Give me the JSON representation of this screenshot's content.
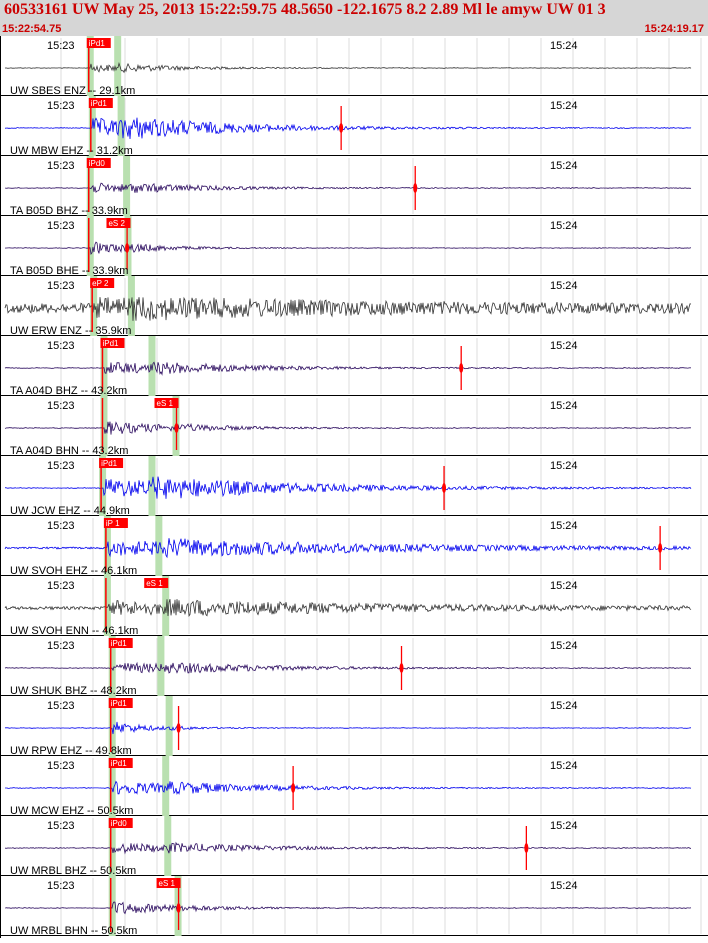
{
  "header": {
    "title": "60533161 UW May 25, 2013 15:22:59.75   48.5650 -122.1675  8.2 2.89 Ml le amyw UW 01   3",
    "start_time": "15:22:54.75",
    "end_time": "15:24:19.17"
  },
  "colors": {
    "header_bg": "#d6d6d6",
    "header_text": "#cc0000",
    "pick": "#ff0000",
    "window": "#b9e0b0",
    "blue": "#0000ee",
    "purple": "#2a0a5e",
    "dark": "#333333",
    "grid": "#dddddd"
  },
  "traces": [
    {
      "label": "UW SBES ENZ -- 29.1km",
      "time_left": "15:23",
      "time_right": "15:24",
      "pick": "iPd1",
      "color": "dark",
      "p": 0.125,
      "s": 0.165,
      "marker": null,
      "amp": 0.22,
      "decay": 0.1,
      "noise": 0.01,
      "clip": 0.18
    },
    {
      "label": "UW MBW EHZ -- 31.2km",
      "time_left": "15:23",
      "time_right": "15:24",
      "pick": "iPd1",
      "color": "blue",
      "p": 0.128,
      "s": 0.17,
      "marker": 0.49,
      "amp": 0.55,
      "decay": 0.16,
      "noise": 0.012,
      "clip": 0.32
    },
    {
      "label": "TA B05D BHZ -- 33.9km",
      "time_left": "15:23",
      "time_right": "15:24",
      "pick": "iPd0",
      "color": "purple",
      "p": 0.125,
      "s": 0.178,
      "marker": 0.598,
      "amp": 0.28,
      "decay": 0.12,
      "noise": 0.012,
      "clip": 0.15
    },
    {
      "label": "TA B05D BHE -- 33.9km",
      "time_left": "15:23",
      "time_right": "15:24",
      "pick": "eS 2",
      "color": "purple",
      "p": 0.125,
      "s": 0.18,
      "marker": 0.178,
      "amp": 0.35,
      "decay": 0.07,
      "noise": 0.01,
      "clip": 0.25
    },
    {
      "label": "UW ERW ENZ -- 35.9km",
      "time_left": "15:23",
      "time_right": "15:24",
      "pick": "eP 2",
      "color": "dark",
      "p": 0.13,
      "s": 0.185,
      "marker": null,
      "amp": 0.35,
      "decay": 0.3,
      "noise": 0.16,
      "clip": 0.3
    },
    {
      "label": "TA A04D BHZ -- 43.2km",
      "time_left": "15:23",
      "time_right": "15:24",
      "pick": "iPd1",
      "color": "purple",
      "p": 0.145,
      "s": 0.215,
      "marker": 0.665,
      "amp": 0.35,
      "decay": 0.15,
      "noise": 0.012,
      "clip": 0.22
    },
    {
      "label": "TA A04D BHN -- 43.2km",
      "time_left": "15:23",
      "time_right": "15:24",
      "pick": "eS 1",
      "color": "purple",
      "p": 0.145,
      "s": 0.25,
      "marker": 0.25,
      "amp": 0.4,
      "decay": 0.1,
      "noise": 0.012,
      "clip": 0.3
    },
    {
      "label": "UW JCW EHZ -- 44.9km",
      "time_left": "15:23",
      "time_right": "15:24",
      "pick": "iPd1",
      "color": "blue",
      "p": 0.143,
      "s": 0.215,
      "marker": 0.64,
      "amp": 0.55,
      "decay": 0.22,
      "noise": 0.012,
      "clip": 0.34
    },
    {
      "label": "UW SVOH EHZ -- 46.1km",
      "time_left": "15:23",
      "time_right": "15:24",
      "pick": "iP 1",
      "color": "blue",
      "p": 0.15,
      "s": 0.225,
      "marker": 0.955,
      "amp": 0.4,
      "decay": 0.32,
      "noise": 0.03,
      "clip": 0.22
    },
    {
      "label": "UW SVOH ENN -- 46.1km",
      "time_left": "15:23",
      "time_right": "15:24",
      "pick": "eS 1",
      "color": "dark",
      "p": 0.15,
      "s": 0.235,
      "marker": null,
      "amp": 0.35,
      "decay": 0.32,
      "noise": 0.05,
      "clip": 0.3
    },
    {
      "label": "UW SHUK BHZ -- 48.2km",
      "time_left": "15:23",
      "time_right": "15:24",
      "pick": "iPd1",
      "color": "purple",
      "p": 0.157,
      "s": 0.228,
      "marker": 0.578,
      "amp": 0.32,
      "decay": 0.16,
      "noise": 0.012,
      "clip": 0.2
    },
    {
      "label": "UW RPW EHZ -- 49.8km",
      "time_left": "15:23",
      "time_right": "15:24",
      "pick": "iPd1",
      "color": "blue",
      "p": 0.157,
      "s": 0.24,
      "marker": 0.253,
      "amp": 0.38,
      "decay": 0.05,
      "noise": 0.01,
      "clip": 0.25
    },
    {
      "label": "UW MCW EHZ -- 50.5km",
      "time_left": "15:23",
      "time_right": "15:24",
      "pick": "iPd1",
      "color": "blue",
      "p": 0.157,
      "s": 0.235,
      "marker": 0.42,
      "amp": 0.38,
      "decay": 0.15,
      "noise": 0.012,
      "clip": 0.24
    },
    {
      "label": "UW MRBL BHZ -- 50.5km",
      "time_left": "15:23",
      "time_right": "15:24",
      "pick": "iPd0",
      "color": "purple",
      "p": 0.157,
      "s": 0.238,
      "marker": 0.76,
      "amp": 0.3,
      "decay": 0.15,
      "noise": 0.012,
      "clip": 0.2
    },
    {
      "label": "UW MRBL BHN -- 50.5km",
      "time_left": "15:23",
      "time_right": "15:24",
      "pick": "eS 1",
      "color": "purple",
      "p": 0.157,
      "s": 0.253,
      "marker": 0.253,
      "amp": 0.4,
      "decay": 0.08,
      "noise": 0.012,
      "clip": 0.3
    }
  ]
}
